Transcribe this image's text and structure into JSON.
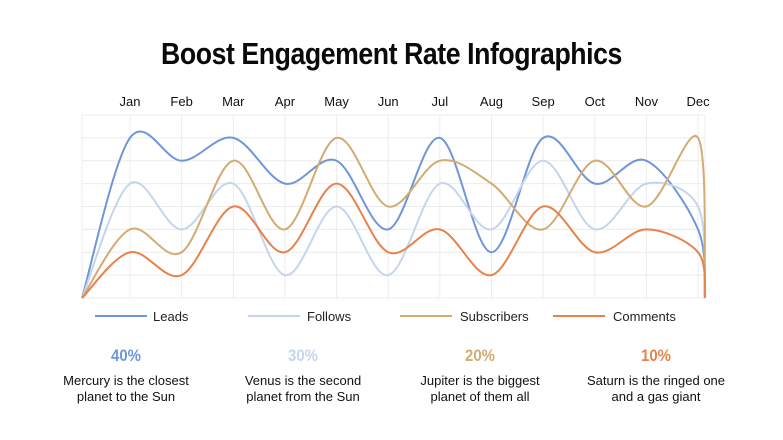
{
  "title": "Boost Engagement Rate Infographics",
  "chart_data": {
    "type": "line",
    "title": "",
    "categories": [
      "Jan",
      "Feb",
      "Mar",
      "Apr",
      "May",
      "Jun",
      "Jul",
      "Aug",
      "Sep",
      "Oct",
      "Nov",
      "Dec"
    ],
    "ylim": [
      0,
      8
    ],
    "grid": true,
    "smooth": true,
    "start_end_value": 0,
    "legend_position": "bottom",
    "series": [
      {
        "name": "Leads",
        "color": "#6f96d8",
        "values": [
          7,
          6,
          7,
          5,
          6,
          3,
          7,
          2,
          7,
          5,
          6,
          3
        ]
      },
      {
        "name": "Follows",
        "color": "#c4d5ed",
        "values": [
          5,
          3,
          5,
          1,
          4,
          1,
          5,
          3,
          6,
          3,
          5,
          4
        ]
      },
      {
        "name": "Subscribers",
        "color": "#d4ab72",
        "values": [
          3,
          2,
          6,
          3,
          7,
          4,
          6,
          5,
          3,
          6,
          4,
          7
        ]
      },
      {
        "name": "Comments",
        "color": "#e8824c",
        "values": [
          2,
          1,
          4,
          2,
          5,
          2,
          3,
          1,
          4,
          2,
          3,
          2
        ]
      }
    ]
  },
  "stats": [
    {
      "percent": "40%",
      "color": "#6f96d8",
      "line1": "Mercury is the closest",
      "line2": "planet to the Sun"
    },
    {
      "percent": "30%",
      "color": "#c4d5ed",
      "line1": "Venus is the second",
      "line2": "planet from the Sun"
    },
    {
      "percent": "20%",
      "color": "#d4ab72",
      "line1": "Jupiter is the biggest",
      "line2": "planet of them all"
    },
    {
      "percent": "10%",
      "color": "#e8824c",
      "line1": "Saturn is the ringed one",
      "line2": "and a gas giant"
    }
  ]
}
